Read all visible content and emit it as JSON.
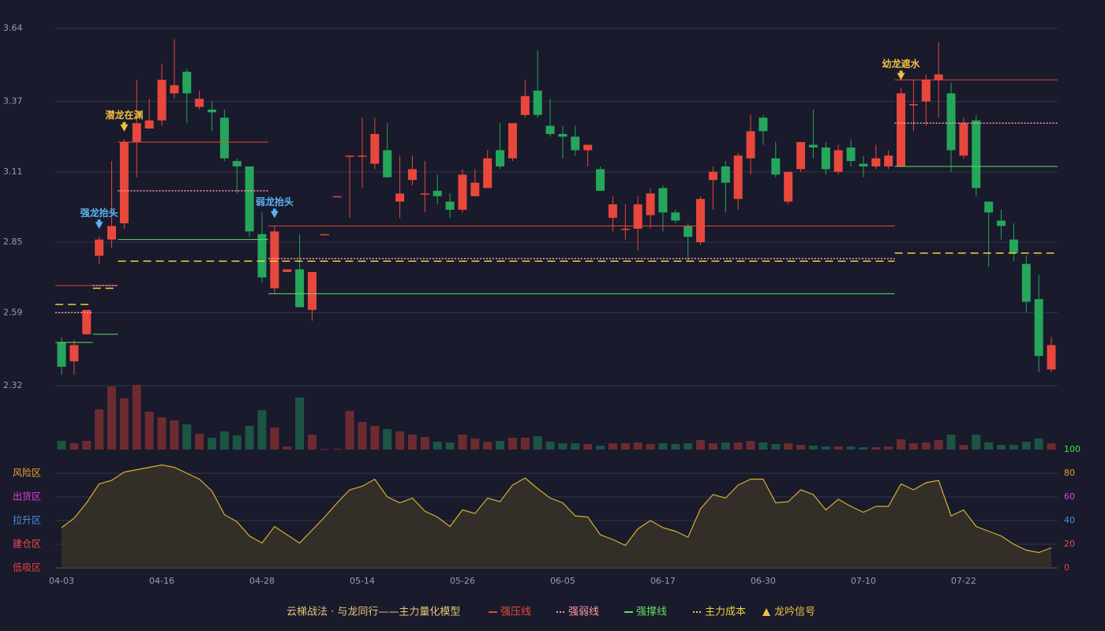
{
  "chart_data": {
    "type": "candlestick",
    "title": "云梯战法 · 与龙同行——主力量化模型",
    "categories": [
      "04-03",
      null,
      null,
      null,
      null,
      null,
      null,
      null,
      "04-16",
      null,
      null,
      null,
      null,
      null,
      null,
      null,
      "04-28",
      null,
      null,
      null,
      null,
      null,
      null,
      null,
      "05-14",
      null,
      null,
      null,
      null,
      null,
      null,
      null,
      "05-26",
      null,
      null,
      null,
      null,
      null,
      null,
      null,
      "06-05",
      null,
      null,
      null,
      null,
      null,
      null,
      null,
      "06-17",
      null,
      null,
      null,
      null,
      null,
      null,
      null,
      "06-30",
      null,
      null,
      null,
      null,
      null,
      null,
      null,
      "07-10",
      null,
      null,
      null,
      null,
      null,
      null,
      null,
      "07-22",
      null,
      null,
      null,
      null,
      null,
      null,
      null
    ],
    "open": [
      2.48,
      2.41,
      2.51,
      2.8,
      2.86,
      2.92,
      3.22,
      3.27,
      3.3,
      3.4,
      3.48,
      3.35,
      3.34,
      3.31,
      3.15,
      3.13,
      2.88,
      2.68,
      2.74,
      2.75,
      2.6,
      2.88,
      3.02,
      3.17,
      3.17,
      3.14,
      3.19,
      3.0,
      3.08,
      3.03,
      3.04,
      3.0,
      2.97,
      3.02,
      3.05,
      3.19,
      3.16,
      3.32,
      3.41,
      3.28,
      3.25,
      3.24,
      3.19,
      3.12,
      2.94,
      2.9,
      2.9,
      2.95,
      3.05,
      2.96,
      2.91,
      2.85,
      3.08,
      3.13,
      3.01,
      3.16,
      3.31,
      3.16,
      3.0,
      3.12,
      3.21,
      3.2,
      3.11,
      3.2,
      3.14,
      3.13,
      3.13,
      3.13,
      3.36,
      3.37,
      3.45,
      3.4,
      3.17,
      3.3,
      3.0,
      2.93,
      2.86,
      2.77,
      2.64,
      2.38
    ],
    "high": [
      2.5,
      2.49,
      2.6,
      2.87,
      3.15,
      3.23,
      3.45,
      3.38,
      3.51,
      3.6,
      3.49,
      3.41,
      3.37,
      3.34,
      3.16,
      3.13,
      2.96,
      2.91,
      2.75,
      2.88,
      2.74,
      2.88,
      3.02,
      3.17,
      3.31,
      3.31,
      3.29,
      3.17,
      3.17,
      3.15,
      3.1,
      3.03,
      3.12,
      3.12,
      3.19,
      3.29,
      3.29,
      3.45,
      3.56,
      3.38,
      3.28,
      3.28,
      3.21,
      3.13,
      3.02,
      2.99,
      3.02,
      3.05,
      3.06,
      2.97,
      2.92,
      3.02,
      3.13,
      3.15,
      3.18,
      3.32,
      3.32,
      3.22,
      3.11,
      3.22,
      3.34,
      3.22,
      3.21,
      3.23,
      3.17,
      3.21,
      3.19,
      3.42,
      3.45,
      3.47,
      3.59,
      3.44,
      3.31,
      3.32,
      3.0,
      2.97,
      2.92,
      2.8,
      2.73,
      2.5
    ],
    "low": [
      2.36,
      2.36,
      2.51,
      2.77,
      2.83,
      2.9,
      3.09,
      3.27,
      3.28,
      3.38,
      3.29,
      3.34,
      3.26,
      3.15,
      3.03,
      2.87,
      2.7,
      2.66,
      2.74,
      2.61,
      2.56,
      2.88,
      3.02,
      2.94,
      3.05,
      3.12,
      3.09,
      2.94,
      3.06,
      2.96,
      2.99,
      2.94,
      2.96,
      3.02,
      3.05,
      3.12,
      3.15,
      3.31,
      3.31,
      3.24,
      3.16,
      3.17,
      3.13,
      3.04,
      2.89,
      2.86,
      2.82,
      2.9,
      2.89,
      2.92,
      2.78,
      2.84,
      2.97,
      2.96,
      2.97,
      3.1,
      3.21,
      3.09,
      2.99,
      3.11,
      3.16,
      3.1,
      3.1,
      3.13,
      3.09,
      3.12,
      3.12,
      3.13,
      3.26,
      3.28,
      3.31,
      3.11,
      3.16,
      3.02,
      2.76,
      2.86,
      2.78,
      2.59,
      2.37,
      2.37
    ],
    "close": [
      2.39,
      2.47,
      2.6,
      2.86,
      2.91,
      3.22,
      3.29,
      3.3,
      3.45,
      3.43,
      3.4,
      3.38,
      3.33,
      3.16,
      3.13,
      2.89,
      2.72,
      2.89,
      2.75,
      2.61,
      2.74,
      2.88,
      3.02,
      3.17,
      3.17,
      3.25,
      3.09,
      3.03,
      3.12,
      3.03,
      3.02,
      2.97,
      3.1,
      3.07,
      3.16,
      3.13,
      3.29,
      3.39,
      3.32,
      3.25,
      3.24,
      3.19,
      3.21,
      3.04,
      2.99,
      2.9,
      2.99,
      3.03,
      2.96,
      2.93,
      2.87,
      3.01,
      3.11,
      3.07,
      3.17,
      3.26,
      3.26,
      3.1,
      3.11,
      3.22,
      3.2,
      3.12,
      3.19,
      3.15,
      3.13,
      3.16,
      3.17,
      3.4,
      3.36,
      3.45,
      3.47,
      3.19,
      3.29,
      3.05,
      2.96,
      2.91,
      2.81,
      2.63,
      2.43,
      2.47
    ],
    "up_color": "#e8483b",
    "down_color": "#26a65b",
    "ylim": [
      2.32,
      3.64
    ],
    "yticks": [
      2.32,
      2.59,
      2.85,
      3.11,
      3.37,
      3.64
    ],
    "grid": true,
    "series": [
      {
        "name": "强压线",
        "color": "#e8483b",
        "dash": false,
        "values": [
          2.69,
          2.69,
          2.69,
          2.69,
          2.69,
          3.22,
          3.22,
          3.22,
          3.22,
          3.22,
          3.22,
          3.22,
          3.22,
          3.22,
          3.22,
          3.22,
          3.22,
          2.91,
          2.91,
          2.91,
          2.91,
          2.91,
          2.91,
          2.91,
          2.91,
          2.91,
          2.91,
          2.91,
          2.91,
          2.91,
          2.91,
          2.91,
          2.91,
          2.91,
          2.91,
          2.91,
          2.91,
          2.91,
          2.91,
          2.91,
          2.91,
          2.91,
          2.91,
          2.91,
          2.91,
          2.91,
          2.91,
          2.91,
          2.91,
          2.91,
          2.91,
          2.91,
          2.91,
          2.91,
          2.91,
          2.91,
          2.91,
          2.91,
          2.91,
          2.91,
          2.91,
          2.91,
          2.91,
          2.91,
          2.91,
          2.91,
          2.91,
          3.45,
          3.45,
          3.45,
          3.45,
          3.45,
          3.45,
          3.45,
          3.45,
          3.45,
          3.45,
          3.45,
          3.45,
          3.45
        ]
      },
      {
        "name": "强弱线",
        "color": "#ff9aa8",
        "dash": true,
        "values": [
          2.59,
          2.59,
          2.59,
          2.69,
          2.69,
          3.04,
          3.04,
          3.04,
          3.04,
          3.04,
          3.04,
          3.04,
          3.04,
          3.04,
          3.04,
          3.04,
          3.04,
          2.79,
          2.79,
          2.79,
          2.79,
          2.79,
          2.79,
          2.79,
          2.79,
          2.79,
          2.79,
          2.79,
          2.79,
          2.79,
          2.79,
          2.79,
          2.79,
          2.79,
          2.79,
          2.79,
          2.79,
          2.79,
          2.79,
          2.79,
          2.79,
          2.79,
          2.79,
          2.79,
          2.79,
          2.79,
          2.79,
          2.79,
          2.79,
          2.79,
          2.79,
          2.79,
          2.79,
          2.79,
          2.79,
          2.79,
          2.79,
          2.79,
          2.79,
          2.79,
          2.79,
          2.79,
          2.79,
          2.79,
          2.79,
          2.79,
          2.79,
          3.29,
          3.29,
          3.29,
          3.29,
          3.29,
          3.29,
          3.29,
          3.29,
          3.29,
          3.29,
          3.29,
          3.29,
          3.29
        ]
      },
      {
        "name": "强撑线",
        "color": "#5ee05e",
        "dash": false,
        "values": [
          2.48,
          2.48,
          2.48,
          2.51,
          2.51,
          2.86,
          2.86,
          2.86,
          2.86,
          2.86,
          2.86,
          2.86,
          2.86,
          2.86,
          2.86,
          2.86,
          2.86,
          2.66,
          2.66,
          2.66,
          2.66,
          2.66,
          2.66,
          2.66,
          2.66,
          2.66,
          2.66,
          2.66,
          2.66,
          2.66,
          2.66,
          2.66,
          2.66,
          2.66,
          2.66,
          2.66,
          2.66,
          2.66,
          2.66,
          2.66,
          2.66,
          2.66,
          2.66,
          2.66,
          2.66,
          2.66,
          2.66,
          2.66,
          2.66,
          2.66,
          2.66,
          2.66,
          2.66,
          2.66,
          2.66,
          2.66,
          2.66,
          2.66,
          2.66,
          2.66,
          2.66,
          2.66,
          2.66,
          2.66,
          2.66,
          2.66,
          2.66,
          3.13,
          3.13,
          3.13,
          3.13,
          3.13,
          3.13,
          3.13,
          3.13,
          3.13,
          3.13,
          3.13,
          3.13,
          3.13
        ]
      },
      {
        "name": "主力成本",
        "color": "#f0d040",
        "dash": true,
        "values": [
          2.62,
          2.62,
          2.62,
          2.68,
          2.68,
          2.78,
          2.78,
          2.78,
          2.78,
          2.78,
          2.78,
          2.78,
          2.78,
          2.78,
          2.78,
          2.78,
          2.78,
          2.78,
          2.78,
          2.78,
          2.78,
          2.78,
          2.78,
          2.78,
          2.78,
          2.78,
          2.78,
          2.78,
          2.78,
          2.78,
          2.78,
          2.78,
          2.78,
          2.78,
          2.78,
          2.78,
          2.78,
          2.78,
          2.78,
          2.78,
          2.78,
          2.78,
          2.78,
          2.78,
          2.78,
          2.78,
          2.78,
          2.78,
          2.78,
          2.78,
          2.78,
          2.78,
          2.78,
          2.78,
          2.78,
          2.78,
          2.78,
          2.78,
          2.78,
          2.78,
          2.78,
          2.78,
          2.78,
          2.78,
          2.78,
          2.78,
          2.78,
          2.81,
          2.81,
          2.81,
          2.81,
          2.81,
          2.81,
          2.81,
          2.81,
          2.81,
          2.81,
          2.81,
          2.81,
          2.81
        ]
      }
    ],
    "signal_legend": {
      "name": "龙吟信号",
      "color": "#f0c040"
    },
    "signals": [
      {
        "text": "强龙抬头",
        "index": 3,
        "color": "#5ab4f0"
      },
      {
        "text": "潜龙在渊",
        "index": 5,
        "color": "#f0c040"
      },
      {
        "text": "弱龙抬头",
        "index": 17,
        "color": "#5ab4f0"
      },
      {
        "text": "幼龙遮水",
        "index": 67,
        "color": "#f0c040"
      }
    ],
    "volume": {
      "ylim": [
        0,
        85
      ],
      "up_color": "#6e2a31",
      "down_color": "#1d5443",
      "values": [
        11,
        8,
        11,
        51,
        80,
        65,
        82,
        48,
        41,
        37,
        32,
        20,
        15,
        23,
        18,
        30,
        50,
        28,
        4,
        66,
        19,
        1,
        1,
        49,
        35,
        30,
        26,
        23,
        19,
        16,
        10,
        9,
        19,
        14,
        10,
        11,
        15,
        15,
        17,
        10,
        8,
        8,
        7,
        5,
        8,
        8,
        9,
        7,
        8,
        7,
        8,
        12,
        8,
        9,
        9,
        11,
        9,
        7,
        8,
        6,
        5,
        4,
        4,
        4,
        3,
        3,
        4,
        13,
        8,
        9,
        12,
        19,
        6,
        19,
        9,
        6,
        6,
        10,
        14,
        8
      ]
    },
    "oscillator": {
      "ylim": [
        0,
        100
      ],
      "color": "#d4b030",
      "yticks": [
        0,
        20,
        40,
        60,
        80,
        100
      ],
      "ytick_colors": [
        "#e84040",
        "#e85050",
        "#4a90e2",
        "#e040e0",
        "#f0a030",
        "#40e040"
      ],
      "zones": [
        "低吸区",
        "建仓区",
        "拉升区",
        "出货区",
        "风险区"
      ],
      "values": [
        34,
        42,
        55,
        71,
        74,
        81,
        83,
        85,
        87,
        85,
        80,
        75,
        65,
        45,
        39,
        27,
        21,
        35,
        28,
        21,
        32,
        43,
        55,
        66,
        69,
        75,
        60,
        55,
        59,
        48,
        43,
        35,
        49,
        46,
        59,
        56,
        70,
        76,
        67,
        59,
        55,
        44,
        43,
        28,
        24,
        19,
        33,
        40,
        34,
        31,
        26,
        50,
        62,
        59,
        70,
        75,
        75,
        55,
        56,
        66,
        62,
        49,
        58,
        52,
        47,
        52,
        52,
        71,
        66,
        72,
        74,
        44,
        49,
        35,
        31,
        27,
        20,
        15,
        13,
        17
      ]
    }
  }
}
